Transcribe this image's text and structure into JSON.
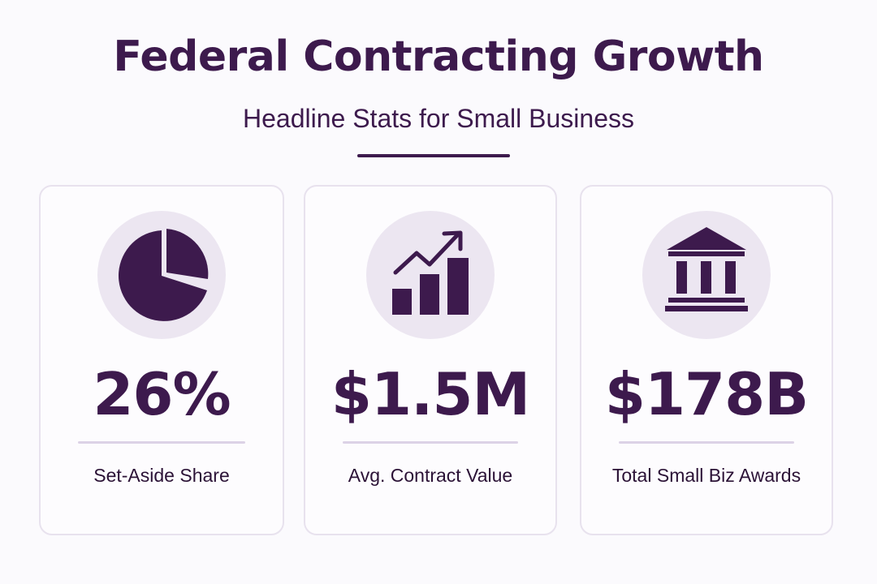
{
  "header": {
    "title": "Federal Contracting Growth",
    "subtitle": "Headline Stats for Small Business"
  },
  "colors": {
    "primary": "#3d1a4d",
    "icon_background": "#ece6f1",
    "card_border": "#e8e2ee",
    "rule": "#dcd2e6"
  },
  "stats": [
    {
      "icon": "pie-chart-icon",
      "value": "26%",
      "label": "Set-Aside Share"
    },
    {
      "icon": "growth-chart-icon",
      "value": "$1.5M",
      "label": "Avg. Contract Value"
    },
    {
      "icon": "government-building-icon",
      "value": "$178B",
      "label": "Total Small Biz Awards"
    }
  ]
}
